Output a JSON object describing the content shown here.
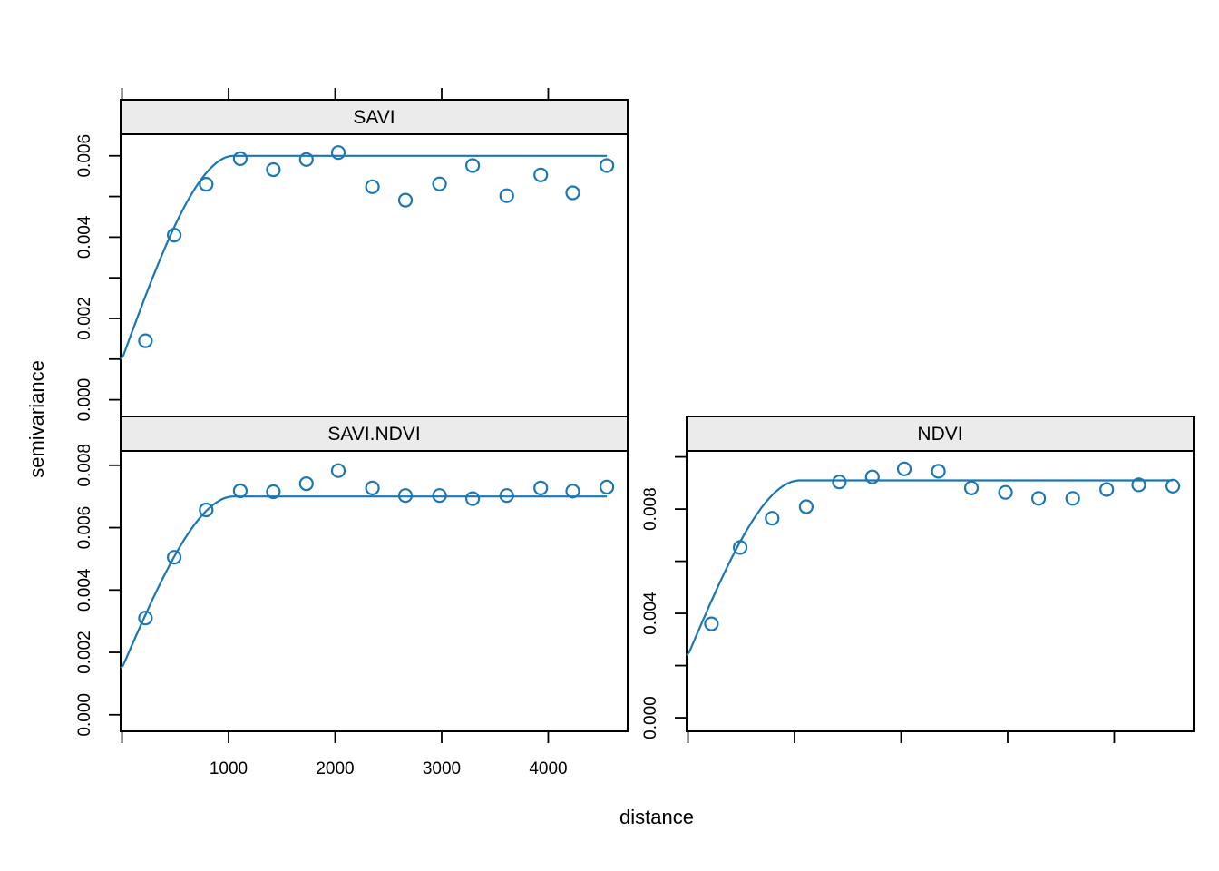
{
  "figure": {
    "xlab": "distance",
    "ylab": "semivariance",
    "accent_color": "#1b77b4",
    "strip_bg": "#ebebeb",
    "frame_color": "#000000"
  },
  "chart_data": {
    "type": "scatter",
    "description": "Empirical variograms (circles) and fitted spherical models (lines) for SAVI, cross SAVI.NDVI and NDVI",
    "xlim": [
      -13,
      4745
    ],
    "xticks": [
      0,
      1000,
      2000,
      3000,
      4000
    ],
    "xtick_labels": [
      "",
      "1000",
      "2000",
      "3000",
      "4000"
    ],
    "distances": [
      220,
      490,
      790,
      1110,
      1420,
      1730,
      2030,
      2350,
      2660,
      2980,
      3290,
      3610,
      3930,
      4230,
      4550
    ],
    "panels": [
      {
        "strip_label": "SAVI",
        "pos": "top-left",
        "axes": [
          "left",
          "top"
        ],
        "show_xlabels": false,
        "ylim": [
          -0.00041,
          0.00653
        ],
        "yticks": [
          0,
          0.001,
          0.002,
          0.003,
          0.004,
          0.005,
          0.006
        ],
        "ylabels": [
          "0.000",
          "",
          "0.002",
          "",
          "0.004",
          "",
          "0.006"
        ],
        "values": [
          0.00145,
          0.00405,
          0.0053,
          0.00593,
          0.00566,
          0.00591,
          0.00608,
          0.00524,
          0.00491,
          0.00531,
          0.00576,
          0.00502,
          0.00553,
          0.00509,
          0.00576
        ],
        "model": {
          "type": "spherical",
          "nugget": 0.001,
          "psill": 0.005,
          "range": 1050
        }
      },
      {
        "strip_label": "SAVI.NDVI",
        "pos": "bottom-left",
        "axes": [
          "left",
          "bottom"
        ],
        "show_xlabels": true,
        "ylim": [
          -0.00053,
          0.00846
        ],
        "yticks": [
          0,
          0.002,
          0.004,
          0.006,
          0.008
        ],
        "ylabels": [
          "0.000",
          "0.002",
          "0.004",
          "0.006",
          "0.008"
        ],
        "values": [
          0.0031,
          0.00505,
          0.00657,
          0.00718,
          0.00715,
          0.00741,
          0.00783,
          0.00727,
          0.00703,
          0.00703,
          0.00693,
          0.00703,
          0.00727,
          0.00717,
          0.0073
        ],
        "model": {
          "type": "spherical",
          "nugget": 0.0015,
          "psill": 0.0055,
          "range": 1050
        }
      },
      {
        "strip_label": "NDVI",
        "pos": "bottom-right",
        "axes": [
          "left",
          "bottom"
        ],
        "show_xlabels": false,
        "ylim": [
          -0.00052,
          0.01023
        ],
        "yticks": [
          0,
          0.002,
          0.004,
          0.006,
          0.008,
          0.01
        ],
        "ylabels": [
          "0.000",
          "",
          "0.004",
          "",
          "0.008",
          ""
        ],
        "values": [
          0.0036,
          0.00653,
          0.00765,
          0.00809,
          0.00904,
          0.00923,
          0.00954,
          0.00945,
          0.00881,
          0.00864,
          0.00841,
          0.00841,
          0.00875,
          0.00893,
          0.00888
        ],
        "model": {
          "type": "spherical",
          "nugget": 0.0024,
          "psill": 0.0067,
          "range": 1050
        }
      }
    ]
  }
}
